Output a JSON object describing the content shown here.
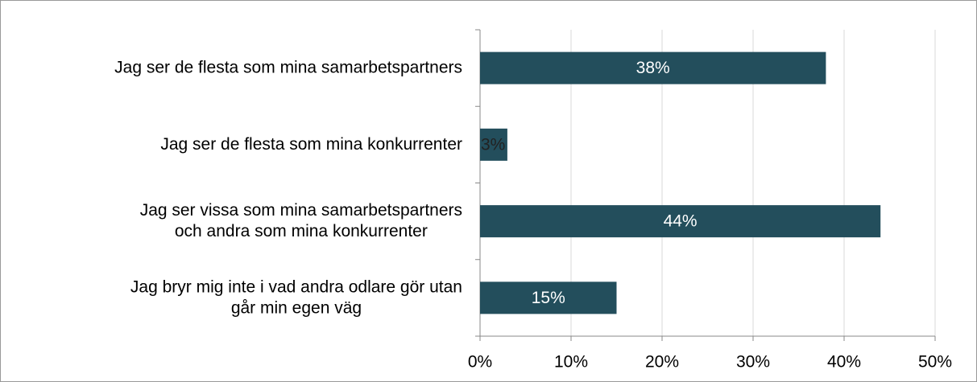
{
  "chart_data": {
    "type": "bar",
    "orientation": "horizontal",
    "categories": [
      "Jag ser de flesta som mina samarbetspartners",
      "Jag ser de flesta som mina konkurrenter",
      "Jag ser vissa som mina samarbetspartners\noch andra som mina konkurrenter",
      "Jag bryr mig inte i vad andra odlare gör utan\ngår min egen väg"
    ],
    "values": [
      38,
      3,
      44,
      15
    ],
    "value_labels": [
      "38%",
      "3%",
      "44%",
      "15%"
    ],
    "color": "#234e5c",
    "xlim": [
      0,
      50
    ],
    "xticks": [
      {
        "value": 0,
        "label": "0%"
      },
      {
        "value": 10,
        "label": "10%"
      },
      {
        "value": 20,
        "label": "20%"
      },
      {
        "value": 30,
        "label": "30%"
      },
      {
        "value": 40,
        "label": "40%"
      },
      {
        "value": 50,
        "label": "50%"
      }
    ],
    "grid": true
  }
}
